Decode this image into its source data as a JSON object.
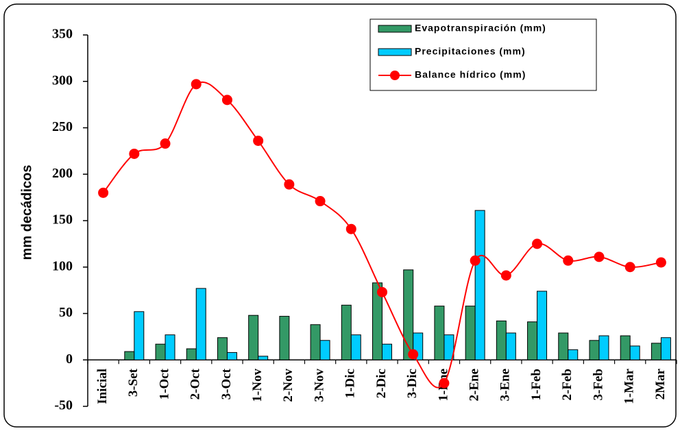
{
  "chart_data": {
    "type": "bar_line",
    "y_label": "mm decádicos",
    "categories": [
      "Inicial",
      "3-Set",
      "1-Oct",
      "2-Oct",
      "3-Oct",
      "1-Nov",
      "2-Nov",
      "3-Nov",
      "1-Dic",
      "2-Dic",
      "3-Dic",
      "1-Ene",
      "2-Ene",
      "3-Ene",
      "1-Feb",
      "2-Feb",
      "3-Feb",
      "1-Mar",
      "2Mar"
    ],
    "series": [
      {
        "name": "Evapotranspiración (mm)",
        "type": "bar",
        "color": "#339966",
        "values": [
          null,
          9,
          17,
          12,
          24,
          48,
          47,
          38,
          59,
          83,
          97,
          58,
          58,
          42,
          41,
          29,
          21,
          26,
          18
        ]
      },
      {
        "name": "Precipitaciones (mm)",
        "type": "bar",
        "color": "#00ccff",
        "values": [
          null,
          52,
          27,
          77,
          8,
          4,
          0,
          21,
          27,
          17,
          29,
          27,
          161,
          29,
          74,
          11,
          26,
          15,
          24
        ]
      },
      {
        "name": "Balance hídrico (mm)",
        "type": "line",
        "color": "#ff0000",
        "values": [
          180,
          222,
          233,
          297,
          280,
          236,
          189,
          171,
          141,
          73,
          6,
          -25,
          107,
          91,
          125,
          107,
          111,
          100,
          105
        ]
      }
    ],
    "ylim": [
      -50,
      350
    ],
    "yticks": [
      -50,
      0,
      50,
      100,
      150,
      200,
      250,
      300,
      350
    ]
  }
}
